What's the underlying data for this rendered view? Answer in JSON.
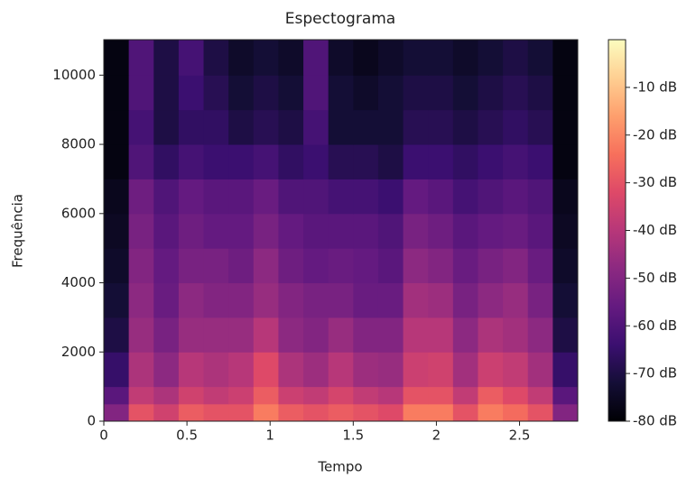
{
  "chart_data": {
    "type": "heatmap",
    "title": "Espectograma",
    "xlabel": "Tempo",
    "ylabel": "Frequência",
    "colormap": "magma",
    "xlim": [
      0,
      2.85
    ],
    "ylim": [
      0,
      11025
    ],
    "xticks": [
      0,
      0.5,
      1,
      1.5,
      2,
      2.5
    ],
    "yticks": [
      0,
      2000,
      4000,
      6000,
      8000,
      10000
    ],
    "clim": [
      -80,
      0
    ],
    "cticks": [
      {
        "value": -10,
        "label": "-10 dB"
      },
      {
        "value": -20,
        "label": "-20 dB"
      },
      {
        "value": -30,
        "label": "-30 dB"
      },
      {
        "value": -40,
        "label": "-40 dB"
      },
      {
        "value": -50,
        "label": "-50 dB"
      },
      {
        "value": -60,
        "label": "-60 dB"
      },
      {
        "value": -70,
        "label": "-70 dB"
      },
      {
        "value": -80,
        "label": "-80 dB"
      }
    ],
    "xbins": [
      0,
      0.15,
      0.3,
      0.45,
      0.6,
      0.75,
      0.9,
      1.05,
      1.2,
      1.35,
      1.5,
      1.65,
      1.8,
      1.95,
      2.1,
      2.25,
      2.4,
      2.55,
      2.7,
      2.85
    ],
    "ybins": [
      0,
      500,
      1000,
      2000,
      3000,
      4000,
      5000,
      6000,
      7000,
      8000,
      9000,
      10000,
      11025
    ],
    "z": [
      [
        -50,
        -30,
        -35,
        -28,
        -30,
        -30,
        -22,
        -28,
        -30,
        -28,
        -30,
        -32,
        -22,
        -22,
        -30,
        -22,
        -25,
        -30,
        -50
      ],
      [
        -58,
        -38,
        -42,
        -35,
        -38,
        -36,
        -28,
        -36,
        -38,
        -34,
        -38,
        -40,
        -30,
        -30,
        -38,
        -28,
        -32,
        -38,
        -58
      ],
      [
        -65,
        -42,
        -48,
        -40,
        -42,
        -40,
        -32,
        -42,
        -45,
        -40,
        -45,
        -46,
        -36,
        -35,
        -44,
        -36,
        -38,
        -44,
        -65
      ],
      [
        -70,
        -46,
        -52,
        -46,
        -46,
        -46,
        -40,
        -48,
        -50,
        -46,
        -50,
        -50,
        -40,
        -40,
        -48,
        -42,
        -44,
        -48,
        -70
      ],
      [
        -72,
        -48,
        -55,
        -48,
        -50,
        -50,
        -46,
        -50,
        -52,
        -52,
        -55,
        -55,
        -44,
        -45,
        -52,
        -48,
        -46,
        -52,
        -72
      ],
      [
        -74,
        -50,
        -56,
        -52,
        -52,
        -54,
        -48,
        -54,
        -56,
        -55,
        -56,
        -58,
        -48,
        -50,
        -55,
        -52,
        -50,
        -55,
        -74
      ],
      [
        -75,
        -52,
        -58,
        -54,
        -56,
        -56,
        -52,
        -56,
        -58,
        -58,
        -58,
        -60,
        -52,
        -54,
        -58,
        -56,
        -55,
        -58,
        -75
      ],
      [
        -76,
        -54,
        -60,
        -56,
        -58,
        -58,
        -55,
        -60,
        -60,
        -62,
        -62,
        -64,
        -56,
        -58,
        -62,
        -60,
        -58,
        -60,
        -76
      ],
      [
        -78,
        -60,
        -66,
        -62,
        -64,
        -64,
        -62,
        -66,
        -64,
        -68,
        -68,
        -70,
        -64,
        -64,
        -66,
        -64,
        -62,
        -64,
        -78
      ],
      [
        -78,
        -62,
        -70,
        -66,
        -66,
        -70,
        -68,
        -70,
        -62,
        -72,
        -72,
        -72,
        -68,
        -68,
        -70,
        -68,
        -66,
        -68,
        -78
      ],
      [
        -78,
        -60,
        -70,
        -64,
        -68,
        -72,
        -70,
        -72,
        -60,
        -72,
        -74,
        -72,
        -70,
        -70,
        -72,
        -70,
        -68,
        -70,
        -78
      ],
      [
        -78,
        -60,
        -70,
        -62,
        -70,
        -74,
        -72,
        -74,
        -60,
        -74,
        -76,
        -74,
        -72,
        -72,
        -74,
        -72,
        -70,
        -72,
        -78
      ]
    ]
  }
}
